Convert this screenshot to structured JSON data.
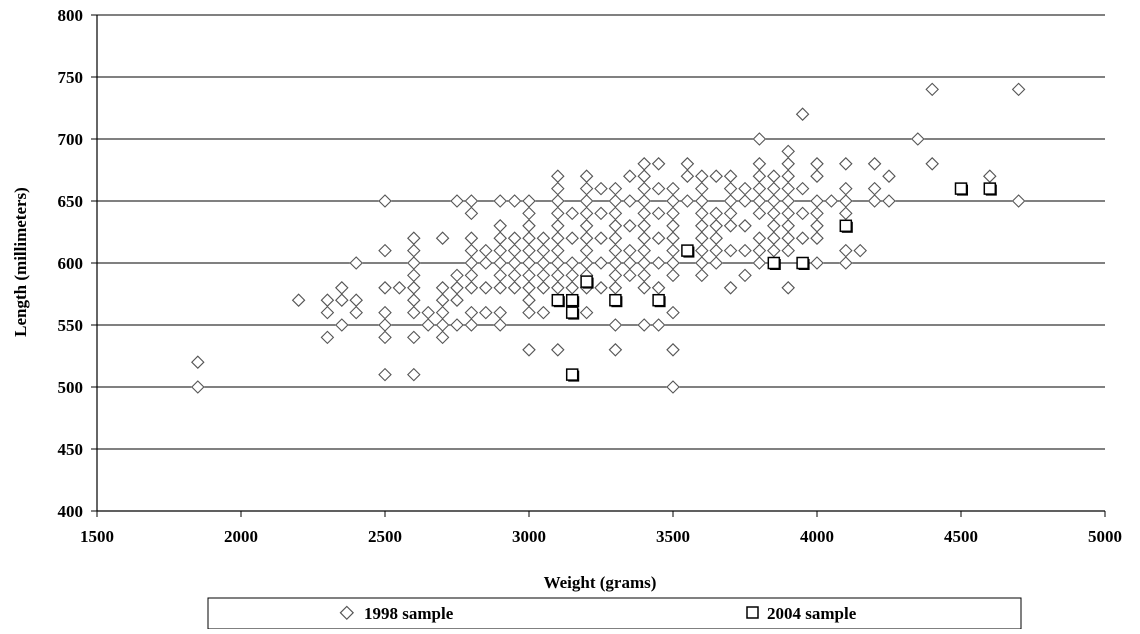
{
  "chart_data": {
    "type": "scatter",
    "title": "",
    "xlabel": "Weight (grams)",
    "ylabel": "Length (millimeters)",
    "xlim": [
      1500,
      5000
    ],
    "ylim": [
      400,
      800
    ],
    "x_ticks": [
      1500,
      2000,
      2500,
      3000,
      3500,
      4000,
      4500,
      5000
    ],
    "y_ticks": [
      400,
      450,
      500,
      550,
      600,
      650,
      700,
      750,
      800
    ],
    "grid": "horizontal",
    "legend_position": "bottom",
    "series": [
      {
        "name": "1998 sample",
        "marker": "diamond",
        "color": "#ffffff",
        "stroke": "#555555",
        "points": [
          [
            1850,
            520
          ],
          [
            1850,
            500
          ],
          [
            2200,
            570
          ],
          [
            2300,
            570
          ],
          [
            2300,
            560
          ],
          [
            2300,
            540
          ],
          [
            2350,
            580
          ],
          [
            2350,
            570
          ],
          [
            2350,
            550
          ],
          [
            2400,
            600
          ],
          [
            2400,
            570
          ],
          [
            2400,
            560
          ],
          [
            2500,
            650
          ],
          [
            2500,
            610
          ],
          [
            2500,
            580
          ],
          [
            2500,
            560
          ],
          [
            2500,
            550
          ],
          [
            2500,
            540
          ],
          [
            2500,
            510
          ],
          [
            2550,
            580
          ],
          [
            2600,
            620
          ],
          [
            2600,
            610
          ],
          [
            2600,
            600
          ],
          [
            2600,
            590
          ],
          [
            2600,
            580
          ],
          [
            2600,
            570
          ],
          [
            2600,
            560
          ],
          [
            2600,
            540
          ],
          [
            2600,
            510
          ],
          [
            2650,
            560
          ],
          [
            2650,
            550
          ],
          [
            2700,
            620
          ],
          [
            2700,
            580
          ],
          [
            2700,
            570
          ],
          [
            2700,
            560
          ],
          [
            2700,
            550
          ],
          [
            2700,
            540
          ],
          [
            2750,
            650
          ],
          [
            2750,
            590
          ],
          [
            2750,
            580
          ],
          [
            2750,
            570
          ],
          [
            2750,
            550
          ],
          [
            2800,
            650
          ],
          [
            2800,
            640
          ],
          [
            2800,
            620
          ],
          [
            2800,
            610
          ],
          [
            2800,
            600
          ],
          [
            2800,
            590
          ],
          [
            2800,
            580
          ],
          [
            2800,
            560
          ],
          [
            2800,
            550
          ],
          [
            2850,
            610
          ],
          [
            2850,
            600
          ],
          [
            2850,
            580
          ],
          [
            2850,
            560
          ],
          [
            2900,
            650
          ],
          [
            2900,
            630
          ],
          [
            2900,
            620
          ],
          [
            2900,
            610
          ],
          [
            2900,
            600
          ],
          [
            2900,
            590
          ],
          [
            2900,
            580
          ],
          [
            2900,
            560
          ],
          [
            2900,
            550
          ],
          [
            2950,
            650
          ],
          [
            2950,
            620
          ],
          [
            2950,
            610
          ],
          [
            2950,
            600
          ],
          [
            2950,
            590
          ],
          [
            2950,
            580
          ],
          [
            3000,
            650
          ],
          [
            3000,
            640
          ],
          [
            3000,
            630
          ],
          [
            3000,
            620
          ],
          [
            3000,
            610
          ],
          [
            3000,
            600
          ],
          [
            3000,
            590
          ],
          [
            3000,
            580
          ],
          [
            3000,
            570
          ],
          [
            3000,
            560
          ],
          [
            3000,
            530
          ],
          [
            3050,
            620
          ],
          [
            3050,
            610
          ],
          [
            3050,
            600
          ],
          [
            3050,
            590
          ],
          [
            3050,
            580
          ],
          [
            3050,
            560
          ],
          [
            3100,
            670
          ],
          [
            3100,
            660
          ],
          [
            3100,
            650
          ],
          [
            3100,
            640
          ],
          [
            3100,
            630
          ],
          [
            3100,
            620
          ],
          [
            3100,
            610
          ],
          [
            3100,
            600
          ],
          [
            3100,
            590
          ],
          [
            3100,
            580
          ],
          [
            3100,
            530
          ],
          [
            3150,
            640
          ],
          [
            3150,
            620
          ],
          [
            3150,
            600
          ],
          [
            3150,
            590
          ],
          [
            3150,
            580
          ],
          [
            3200,
            670
          ],
          [
            3200,
            660
          ],
          [
            3200,
            650
          ],
          [
            3200,
            640
          ],
          [
            3200,
            630
          ],
          [
            3200,
            620
          ],
          [
            3200,
            610
          ],
          [
            3200,
            600
          ],
          [
            3200,
            590
          ],
          [
            3200,
            580
          ],
          [
            3200,
            560
          ],
          [
            3250,
            660
          ],
          [
            3250,
            640
          ],
          [
            3250,
            620
          ],
          [
            3250,
            600
          ],
          [
            3250,
            580
          ],
          [
            3300,
            660
          ],
          [
            3300,
            650
          ],
          [
            3300,
            640
          ],
          [
            3300,
            630
          ],
          [
            3300,
            620
          ],
          [
            3300,
            610
          ],
          [
            3300,
            600
          ],
          [
            3300,
            590
          ],
          [
            3300,
            580
          ],
          [
            3300,
            550
          ],
          [
            3300,
            530
          ],
          [
            3350,
            670
          ],
          [
            3350,
            650
          ],
          [
            3350,
            630
          ],
          [
            3350,
            610
          ],
          [
            3350,
            600
          ],
          [
            3350,
            590
          ],
          [
            3400,
            680
          ],
          [
            3400,
            670
          ],
          [
            3400,
            660
          ],
          [
            3400,
            650
          ],
          [
            3400,
            640
          ],
          [
            3400,
            630
          ],
          [
            3400,
            620
          ],
          [
            3400,
            610
          ],
          [
            3400,
            600
          ],
          [
            3400,
            590
          ],
          [
            3400,
            580
          ],
          [
            3400,
            550
          ],
          [
            3450,
            680
          ],
          [
            3450,
            660
          ],
          [
            3450,
            640
          ],
          [
            3450,
            620
          ],
          [
            3450,
            600
          ],
          [
            3450,
            580
          ],
          [
            3450,
            550
          ],
          [
            3500,
            660
          ],
          [
            3500,
            650
          ],
          [
            3500,
            640
          ],
          [
            3500,
            630
          ],
          [
            3500,
            620
          ],
          [
            3500,
            610
          ],
          [
            3500,
            600
          ],
          [
            3500,
            590
          ],
          [
            3500,
            560
          ],
          [
            3500,
            530
          ],
          [
            3500,
            500
          ],
          [
            3550,
            680
          ],
          [
            3550,
            670
          ],
          [
            3550,
            650
          ],
          [
            3600,
            670
          ],
          [
            3600,
            660
          ],
          [
            3600,
            650
          ],
          [
            3600,
            640
          ],
          [
            3600,
            630
          ],
          [
            3600,
            620
          ],
          [
            3600,
            610
          ],
          [
            3600,
            600
          ],
          [
            3600,
            590
          ],
          [
            3650,
            670
          ],
          [
            3650,
            640
          ],
          [
            3650,
            630
          ],
          [
            3650,
            620
          ],
          [
            3650,
            610
          ],
          [
            3650,
            600
          ],
          [
            3700,
            670
          ],
          [
            3700,
            660
          ],
          [
            3700,
            650
          ],
          [
            3700,
            640
          ],
          [
            3700,
            630
          ],
          [
            3700,
            610
          ],
          [
            3700,
            580
          ],
          [
            3750,
            660
          ],
          [
            3750,
            650
          ],
          [
            3750,
            630
          ],
          [
            3750,
            610
          ],
          [
            3750,
            590
          ],
          [
            3800,
            700
          ],
          [
            3800,
            680
          ],
          [
            3800,
            670
          ],
          [
            3800,
            660
          ],
          [
            3800,
            650
          ],
          [
            3800,
            640
          ],
          [
            3800,
            620
          ],
          [
            3800,
            610
          ],
          [
            3800,
            600
          ],
          [
            3850,
            670
          ],
          [
            3850,
            660
          ],
          [
            3850,
            650
          ],
          [
            3850,
            640
          ],
          [
            3850,
            630
          ],
          [
            3850,
            620
          ],
          [
            3850,
            610
          ],
          [
            3850,
            600
          ],
          [
            3900,
            690
          ],
          [
            3900,
            680
          ],
          [
            3900,
            670
          ],
          [
            3900,
            660
          ],
          [
            3900,
            650
          ],
          [
            3900,
            640
          ],
          [
            3900,
            630
          ],
          [
            3900,
            620
          ],
          [
            3900,
            610
          ],
          [
            3900,
            580
          ],
          [
            3950,
            720
          ],
          [
            3950,
            660
          ],
          [
            3950,
            640
          ],
          [
            3950,
            620
          ],
          [
            4000,
            680
          ],
          [
            4000,
            670
          ],
          [
            4000,
            650
          ],
          [
            4000,
            640
          ],
          [
            4000,
            630
          ],
          [
            4000,
            620
          ],
          [
            4000,
            600
          ],
          [
            4050,
            650
          ],
          [
            4100,
            680
          ],
          [
            4100,
            660
          ],
          [
            4100,
            650
          ],
          [
            4100,
            640
          ],
          [
            4100,
            610
          ],
          [
            4100,
            600
          ],
          [
            4150,
            610
          ],
          [
            4200,
            680
          ],
          [
            4200,
            660
          ],
          [
            4200,
            650
          ],
          [
            4250,
            670
          ],
          [
            4250,
            650
          ],
          [
            4350,
            700
          ],
          [
            4400,
            740
          ],
          [
            4400,
            680
          ],
          [
            4600,
            670
          ],
          [
            4700,
            740
          ],
          [
            4700,
            650
          ]
        ]
      },
      {
        "name": "2004 sample",
        "marker": "square",
        "color": "#ffffff",
        "stroke": "#000000",
        "points": [
          [
            3100,
            570
          ],
          [
            3150,
            570
          ],
          [
            3150,
            560
          ],
          [
            3150,
            510
          ],
          [
            3200,
            585
          ],
          [
            3300,
            570
          ],
          [
            3450,
            570
          ],
          [
            3550,
            610
          ],
          [
            3850,
            600
          ],
          [
            3950,
            600
          ],
          [
            4100,
            630
          ],
          [
            4500,
            660
          ],
          [
            4600,
            660
          ]
        ]
      }
    ]
  }
}
